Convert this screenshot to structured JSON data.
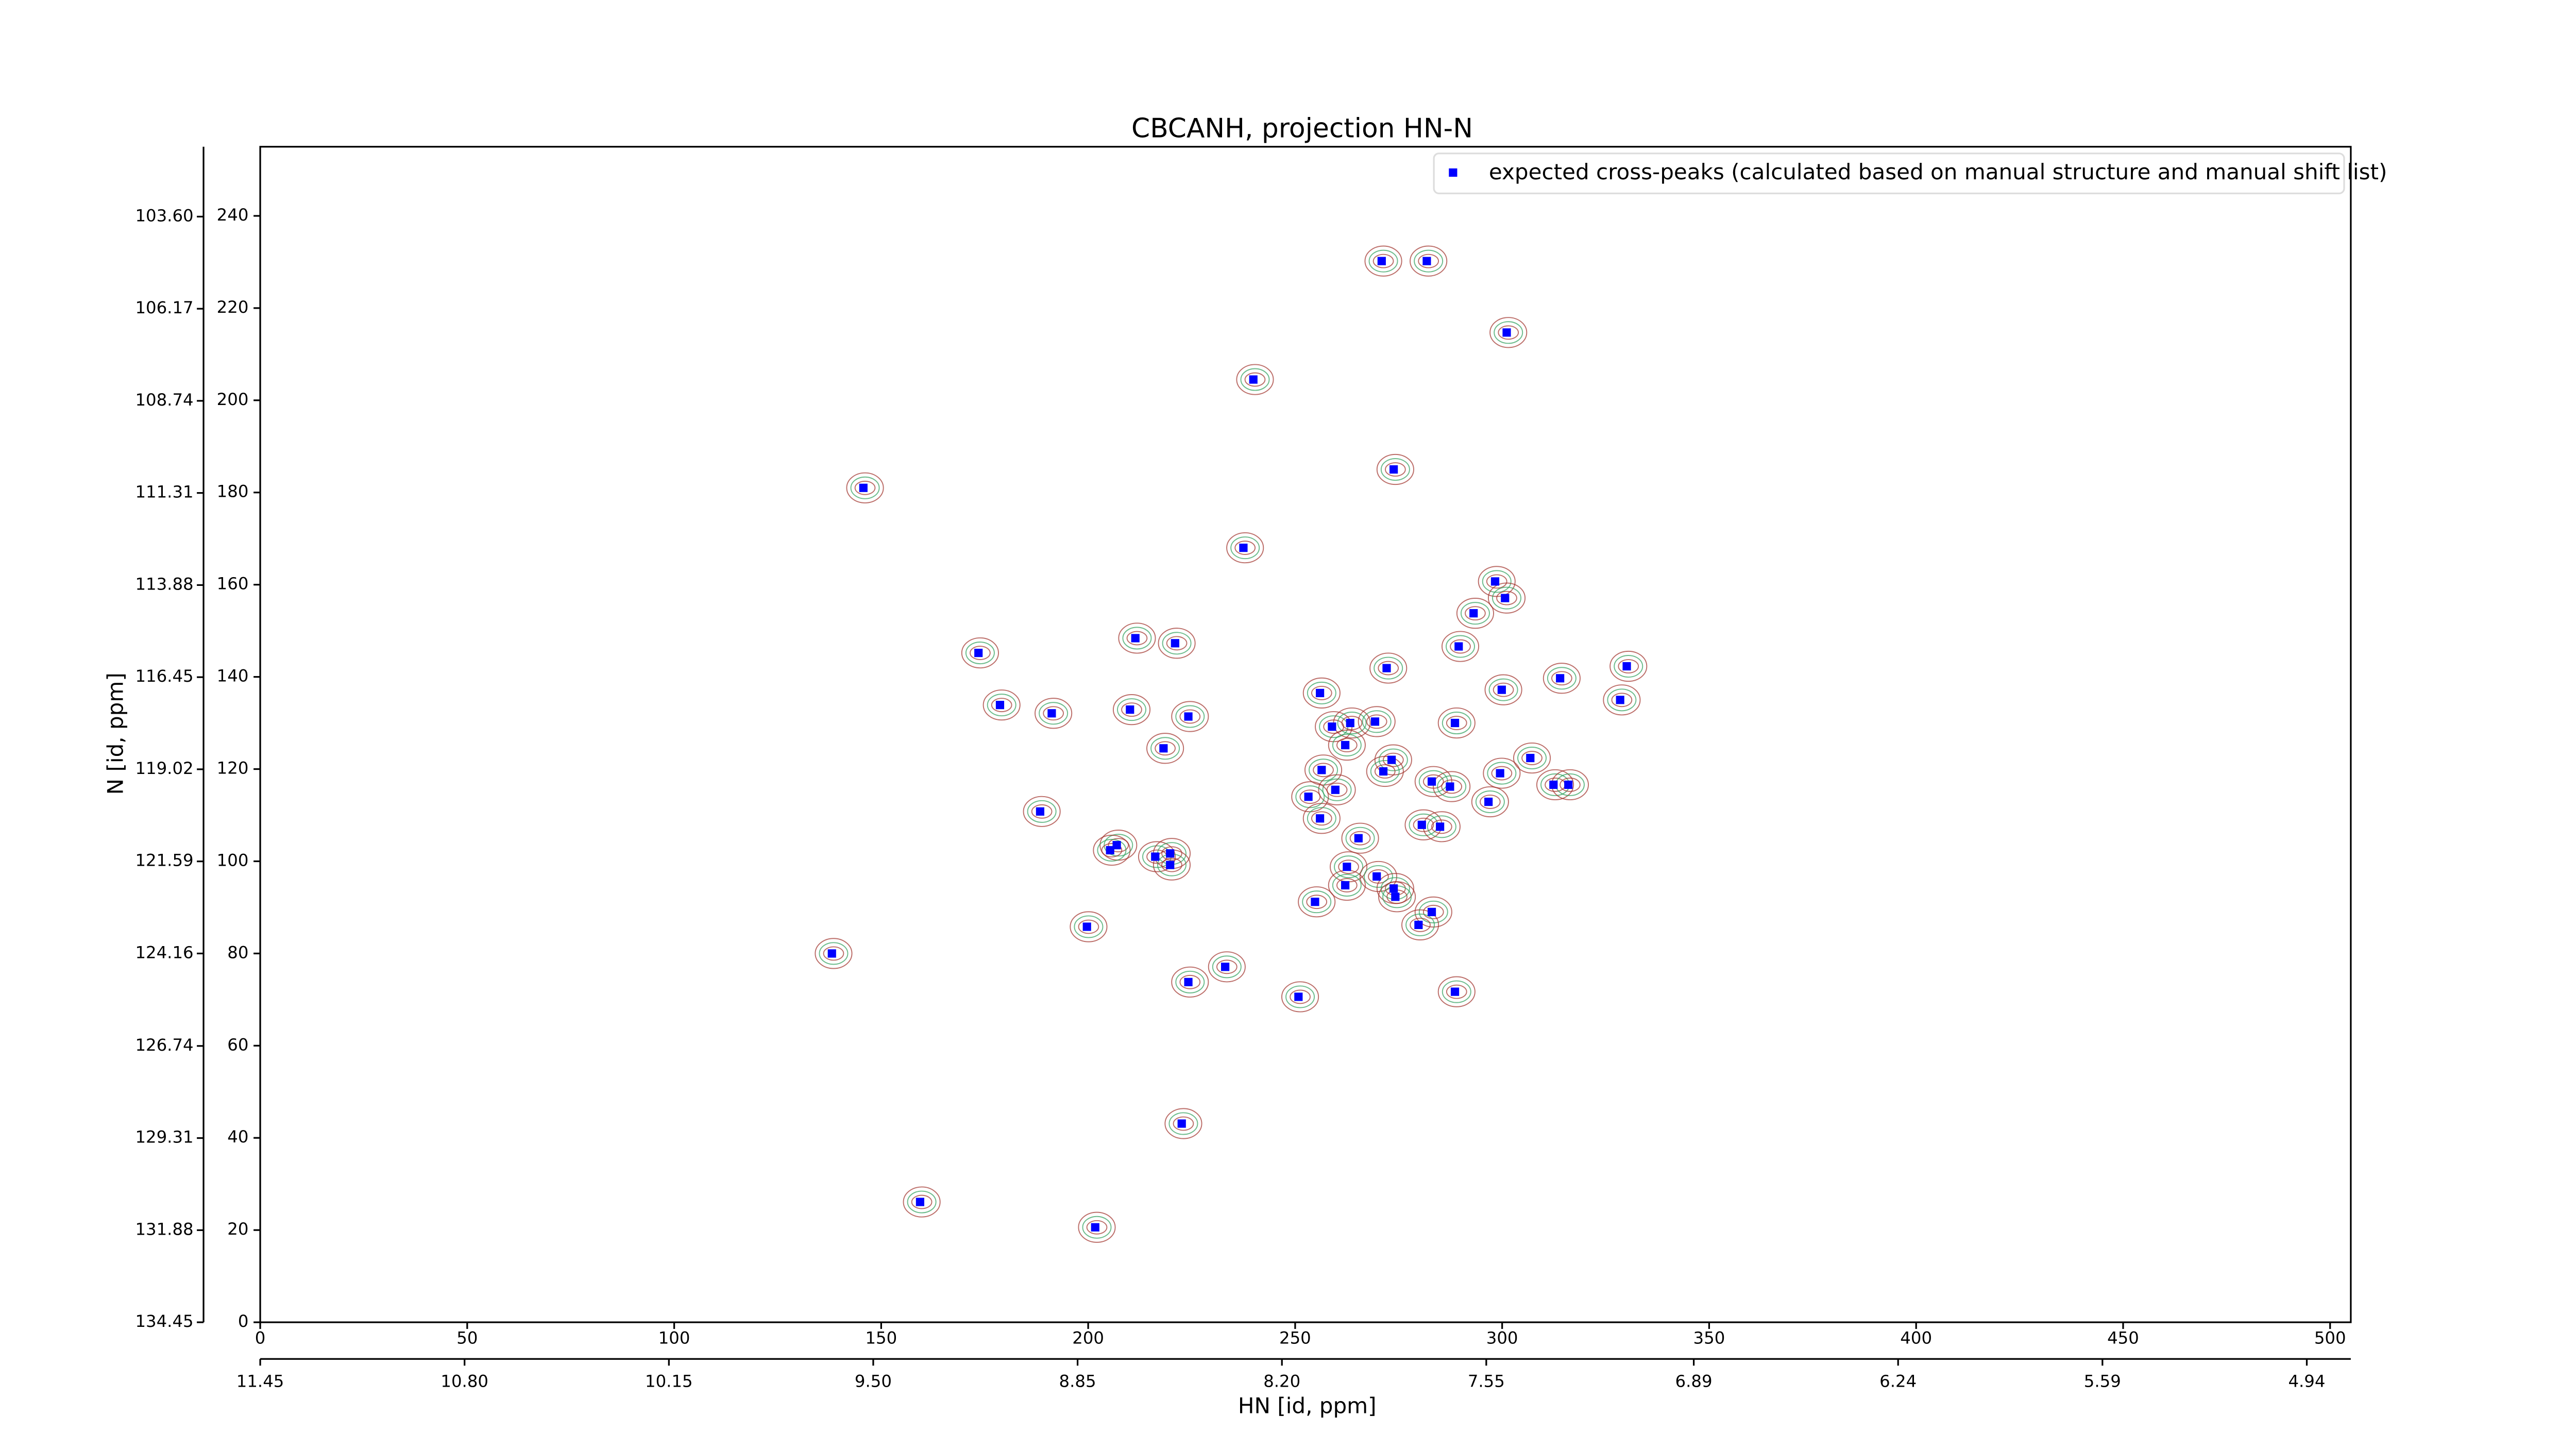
{
  "chart_data": {
    "type": "scatter",
    "title": "CBCANH, projection HN-N",
    "x_label": "HN [id, ppm]",
    "y_label": "N [id, ppm]",
    "xlim": [
      0,
      505
    ],
    "ylim": [
      0,
      255
    ],
    "xticks": [
      0,
      50,
      100,
      150,
      200,
      250,
      300,
      350,
      400,
      450,
      500
    ],
    "yticks": [
      0,
      20,
      40,
      60,
      80,
      100,
      120,
      140,
      160,
      180,
      200,
      220,
      240
    ],
    "x2lim": [
      11.45,
      4.8
    ],
    "x2ticks": [
      11.45,
      {
        "value": 10.8,
        "label": "10.80"
      },
      10.15,
      {
        "value": 9.5,
        "label": "9.50"
      },
      8.85,
      {
        "value": 8.2,
        "label": "8.20"
      },
      7.55,
      6.89,
      6.24,
      5.59,
      4.94
    ],
    "y2lim": [
      134.45,
      101.65
    ],
    "y2ticks": [
      134.45,
      131.88,
      129.31,
      126.74,
      124.16,
      121.59,
      119.02,
      116.45,
      113.88,
      111.31,
      108.74,
      106.17,
      {
        "value": 103.6,
        "label": "103.60"
      }
    ],
    "legend": "upper right",
    "x": [
      270.9,
      281.8,
      301.1,
      239.9,
      145.7,
      273.8,
      237.5,
      298.3,
      300.7,
      293.1,
      211.4,
      221.0,
      173.5,
      289.5,
      272.1,
      330.1,
      314.0,
      256.0,
      299.9,
      178.7,
      328.5,
      210.1,
      191.2,
      224.2,
      288.6,
      258.9,
      263.3,
      269.3,
      262.1,
      218.2,
      273.3,
      306.8,
      256.4,
      271.3,
      299.5,
      283.0,
      287.4,
      312.4,
      316.0,
      259.7,
      253.2,
      296.7,
      188.4,
      256.0,
      280.6,
      285.0,
      265.3,
      206.9,
      205.3,
      216.2,
      219.8,
      219.8,
      262.5,
      269.7,
      262.1,
      273.8,
      274.2,
      254.8,
      283.0,
      279.8,
      199.7,
      138.1,
      233.1,
      224.2,
      250.8,
      288.6,
      222.6,
      159.4,
      201.7
    ],
    "series": [
      {
        "name": "expected cross-peaks (calculated based on manual structure and manual shift list)",
        "color": "#0000ff",
        "values": [
          230.2,
          230.2,
          214.7,
          204.5,
          181.0,
          185.0,
          168.0,
          160.7,
          157.1,
          153.8,
          148.4,
          147.3,
          145.2,
          146.6,
          141.9,
          142.3,
          139.7,
          136.5,
          137.2,
          133.9,
          135.0,
          132.9,
          132.1,
          131.4,
          130.0,
          129.2,
          130.0,
          130.3,
          125.2,
          124.5,
          122.0,
          122.4,
          119.8,
          119.5,
          119.1,
          117.3,
          116.2,
          116.6,
          116.6,
          115.5,
          114.0,
          112.9,
          110.8,
          109.3,
          107.9,
          107.5,
          105.0,
          103.5,
          102.4,
          101.0,
          101.7,
          99.2,
          98.8,
          96.7,
          94.8,
          94.1,
          92.3,
          91.2,
          89.0,
          86.2,
          85.8,
          80.0,
          77.1,
          73.8,
          70.6,
          71.7,
          43.1,
          26.1,
          20.6
        ]
      }
    ]
  }
}
